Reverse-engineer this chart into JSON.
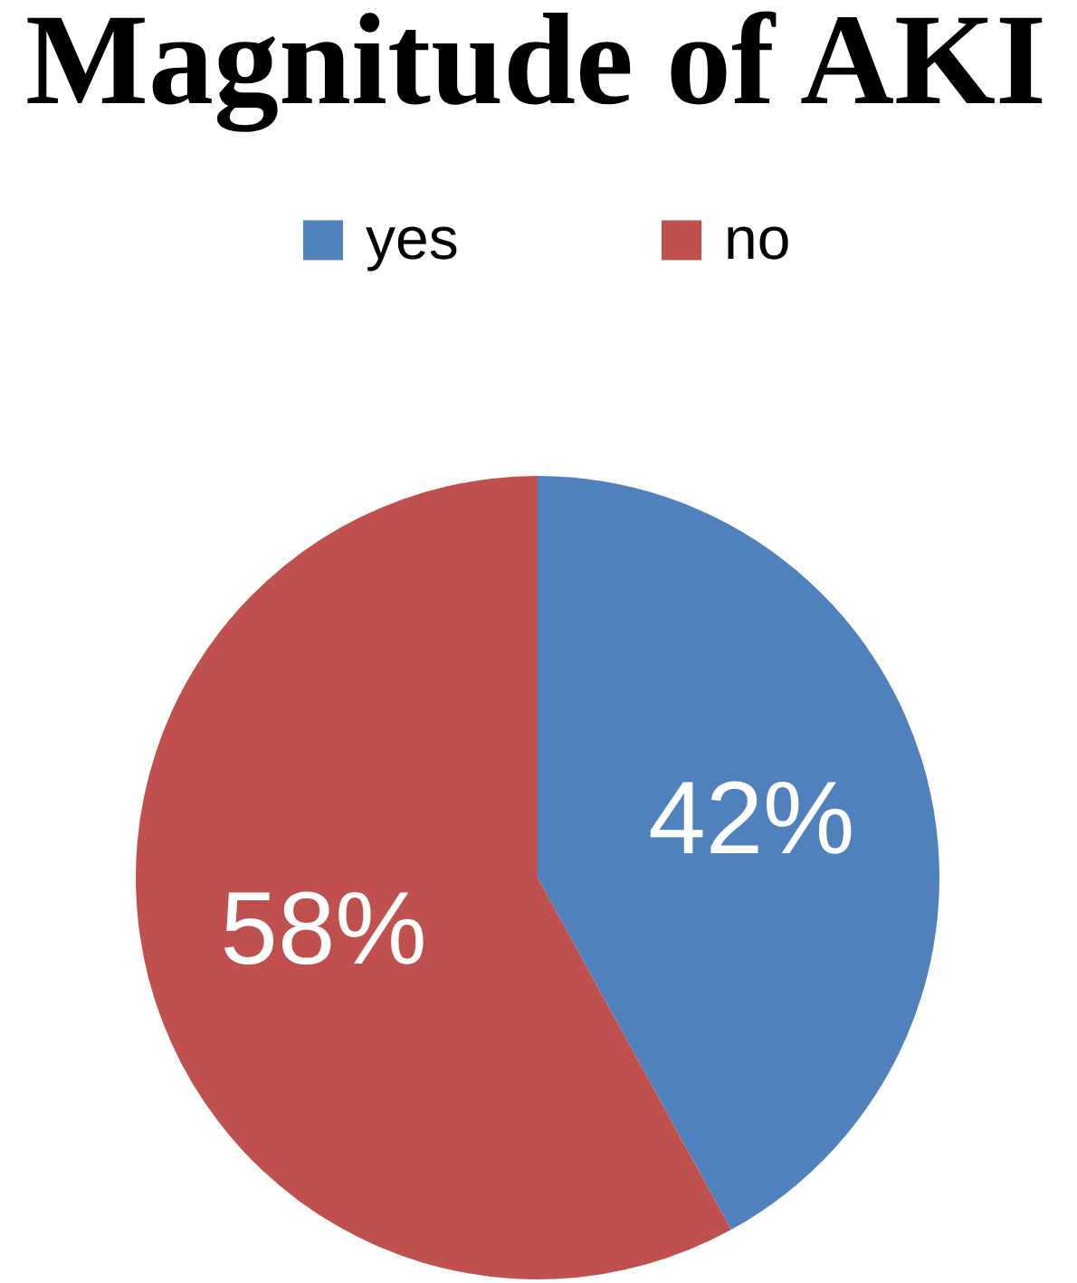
{
  "chart_data": {
    "type": "pie",
    "title": "Magnitude of AKI",
    "categories": [
      "yes",
      "no"
    ],
    "values": [
      42,
      58
    ],
    "colors": [
      "#4f81bd",
      "#c0504d"
    ],
    "value_labels": [
      "42%",
      "58%"
    ],
    "legend": "top"
  }
}
